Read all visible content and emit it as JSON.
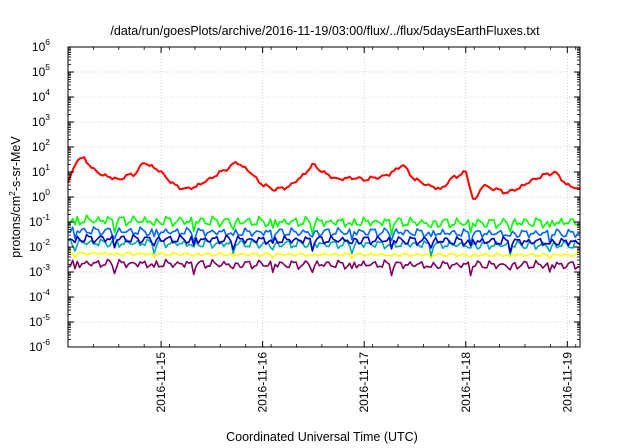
{
  "chart_data": {
    "type": "line",
    "title": "/data/run/goesPlots/archive/2016-11-19/03:00/flux/../flux/5daysEarthFluxes.txt",
    "xlabel": "Coordinated Universal Time (UTC)",
    "ylabel": "protons/cm2-s-sr-MeV",
    "ylabel_parts": {
      "pre": "protons/cm",
      "sup": "2",
      "post": "-s-sr-MeV"
    },
    "y_scale": "log",
    "ylim": [
      1e-06,
      1000000.0
    ],
    "xlim": [
      "2016-11-14 02:00",
      "2016-11-19 03:00"
    ],
    "grid": true,
    "legend": "none",
    "x_ticks": [
      "2016-11-15",
      "2016-11-16",
      "2016-11-17",
      "2016-11-18",
      "2016-11-19"
    ],
    "y_ticks": [
      {
        "base": "10",
        "exp": "-6"
      },
      {
        "base": "10",
        "exp": "-5"
      },
      {
        "base": "10",
        "exp": "-4"
      },
      {
        "base": "10",
        "exp": "-3"
      },
      {
        "base": "10",
        "exp": "-2"
      },
      {
        "base": "10",
        "exp": "-1"
      },
      {
        "base": "10",
        "exp": "0"
      },
      {
        "base": "10",
        "exp": "1"
      },
      {
        "base": "10",
        "exp": "2"
      },
      {
        "base": "10",
        "exp": "3"
      },
      {
        "base": "10",
        "exp": "4"
      },
      {
        "base": "10",
        "exp": "5"
      },
      {
        "base": "10",
        "exp": "6"
      }
    ],
    "series": [
      {
        "color": "#ff0000",
        "x": [
          "2016-11-14 02:00",
          "2016-11-14 04:00",
          "2016-11-14 06:00",
          "2016-11-14 08:00",
          "2016-11-14 10:00",
          "2016-11-14 12:00",
          "2016-11-14 14:00",
          "2016-11-14 16:00",
          "2016-11-14 18:00",
          "2016-11-14 20:00",
          "2016-11-15 00:00",
          "2016-11-15 03:00",
          "2016-11-15 06:00",
          "2016-11-15 09:00",
          "2016-11-15 12:00",
          "2016-11-15 15:00",
          "2016-11-15 18:00",
          "2016-11-15 21:00",
          "2016-11-16 00:00",
          "2016-11-16 03:00",
          "2016-11-16 06:00",
          "2016-11-16 09:00",
          "2016-11-16 12:00",
          "2016-11-16 15:00",
          "2016-11-16 18:00",
          "2016-11-16 21:00",
          "2016-11-17 00:00",
          "2016-11-17 03:00",
          "2016-11-17 06:00",
          "2016-11-17 09:00",
          "2016-11-17 12:00",
          "2016-11-17 15:00",
          "2016-11-17 18:00",
          "2016-11-17 21:00",
          "2016-11-18 00:00",
          "2016-11-18 02:00",
          "2016-11-18 04:00",
          "2016-11-18 07:00",
          "2016-11-18 10:00",
          "2016-11-18 13:00",
          "2016-11-18 16:00",
          "2016-11-18 19:00",
          "2016-11-18 21:00",
          "2016-11-19 00:00",
          "2016-11-19 03:00"
        ],
        "values": [
          3.5,
          30,
          35,
          12,
          8,
          6,
          5,
          7,
          9,
          25,
          10,
          3,
          2,
          3,
          6,
          12,
          25,
          10,
          3,
          2,
          2.5,
          6,
          20,
          8,
          5,
          6,
          5,
          6,
          8,
          20,
          5,
          3,
          2,
          6,
          10,
          0.6,
          3,
          2,
          1.5,
          2.5,
          5,
          8,
          10,
          3,
          2
        ]
      },
      {
        "color": "#00ff00",
        "x": [
          "2016-11-14 02:00",
          "2016-11-15 02:00",
          "2016-11-16 02:00",
          "2016-11-17 02:00",
          "2016-11-18 02:00",
          "2016-11-19 03:00"
        ],
        "values": [
          0.12,
          0.11,
          0.1,
          0.1,
          0.09,
          0.1
        ]
      },
      {
        "color": "#00a8a8",
        "x": [
          "2016-11-14 02:00",
          "2016-11-15 02:00",
          "2016-11-16 02:00",
          "2016-11-17 02:00",
          "2016-11-18 02:00",
          "2016-11-19 03:00"
        ],
        "values": [
          0.015,
          0.014,
          0.013,
          0.013,
          0.012,
          0.012
        ]
      },
      {
        "color": "#0066ff",
        "x": [
          "2016-11-14 02:00",
          "2016-11-15 02:00",
          "2016-11-16 02:00",
          "2016-11-17 02:00",
          "2016-11-18 02:00",
          "2016-11-19 03:00"
        ],
        "values": [
          0.045,
          0.04,
          0.038,
          0.04,
          0.035,
          0.035
        ]
      },
      {
        "color": "#0000c0",
        "x": [
          "2016-11-14 02:00",
          "2016-11-15 02:00",
          "2016-11-16 02:00",
          "2016-11-17 02:00",
          "2016-11-18 02:00",
          "2016-11-19 03:00"
        ],
        "values": [
          0.022,
          0.02,
          0.019,
          0.019,
          0.017,
          0.016
        ]
      },
      {
        "color": "#ffff00",
        "x": [
          "2016-11-14 02:00",
          "2016-11-15 02:00",
          "2016-11-16 02:00",
          "2016-11-17 02:00",
          "2016-11-18 02:00",
          "2016-11-19 03:00"
        ],
        "values": [
          0.0055,
          0.0052,
          0.005,
          0.005,
          0.0048,
          0.0048
        ]
      },
      {
        "color": "#800060",
        "x": [
          "2016-11-14 02:00",
          "2016-11-15 02:00",
          "2016-11-16 02:00",
          "2016-11-17 02:00",
          "2016-11-18 02:00",
          "2016-11-19 03:00"
        ],
        "values": [
          0.0022,
          0.0021,
          0.002,
          0.002,
          0.0019,
          0.0019
        ]
      }
    ]
  }
}
